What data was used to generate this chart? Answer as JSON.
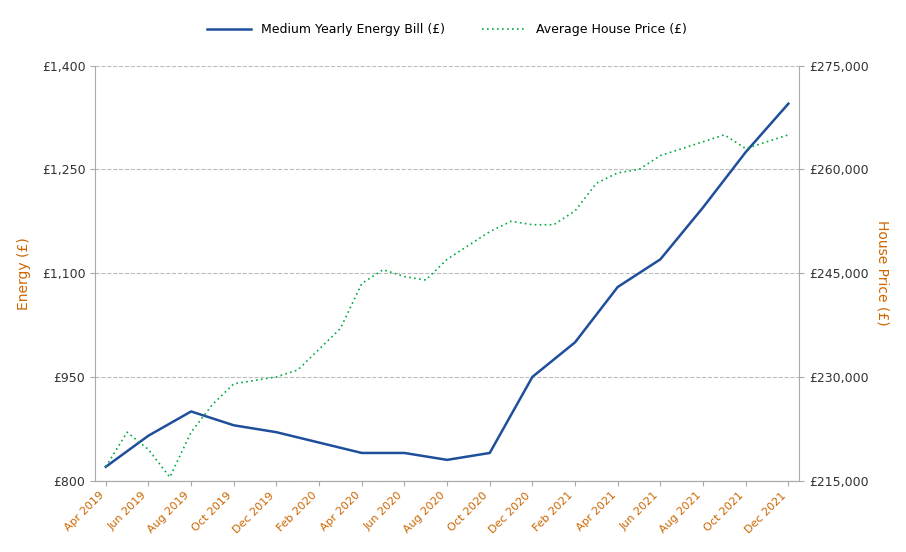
{
  "legend_energy": "Medium Yearly Energy Bill (£)",
  "legend_house": "Average House Price (£)",
  "ylabel_left": "Energy (£)",
  "ylabel_right": "House Price (£)",
  "x_labels": [
    "Apr 2019",
    "Jun 2019",
    "Aug 2019",
    "Oct 2019",
    "Dec 2019",
    "Feb 2020",
    "Apr 2020",
    "Jun 2020",
    "Aug 2020",
    "Oct 2020",
    "Dec 2020",
    "Feb 2021",
    "Apr 2021",
    "Jun 2021",
    "Aug 2021",
    "Oct 2021",
    "Dec 2021"
  ],
  "energy_x": [
    0,
    2,
    4,
    6,
    8,
    10,
    12,
    14,
    16,
    18,
    20,
    22,
    24,
    26,
    28,
    30,
    32
  ],
  "energy_y": [
    820,
    865,
    900,
    880,
    870,
    855,
    840,
    840,
    830,
    840,
    950,
    1000,
    1080,
    1120,
    1195,
    1275,
    1345
  ],
  "house_x": [
    0,
    1,
    2,
    3,
    4,
    5,
    6,
    7,
    8,
    9,
    10,
    11,
    12,
    13,
    14,
    15,
    16,
    17,
    18,
    19,
    20,
    21,
    22,
    23,
    24,
    25,
    26,
    27,
    28,
    29,
    30,
    31,
    32
  ],
  "house_y": [
    217000,
    222000,
    219500,
    215500,
    222000,
    226000,
    229000,
    229500,
    230000,
    231000,
    234000,
    237000,
    243500,
    245500,
    244500,
    244000,
    247000,
    249000,
    251000,
    252500,
    252000,
    252000,
    254000,
    258000,
    259500,
    260000,
    262000,
    263000,
    264000,
    265000,
    263000,
    264000,
    265000
  ],
  "energy_color": "#1f4e9a",
  "house_color": "#00aa44",
  "ylim_energy": [
    800,
    1400
  ],
  "ylim_house": [
    215000,
    275000
  ],
  "energy_yticks": [
    800,
    950,
    1100,
    1250,
    1400
  ],
  "house_yticks": [
    215000,
    230000,
    245000,
    260000,
    275000
  ],
  "bg_color": "#ffffff",
  "grid_color": "#bbbbbb",
  "tick_label_color": "#333333",
  "axis_label_color": "#cc6600",
  "xtick_label_color": "#cc6600",
  "spine_color": "#aaaaaa"
}
